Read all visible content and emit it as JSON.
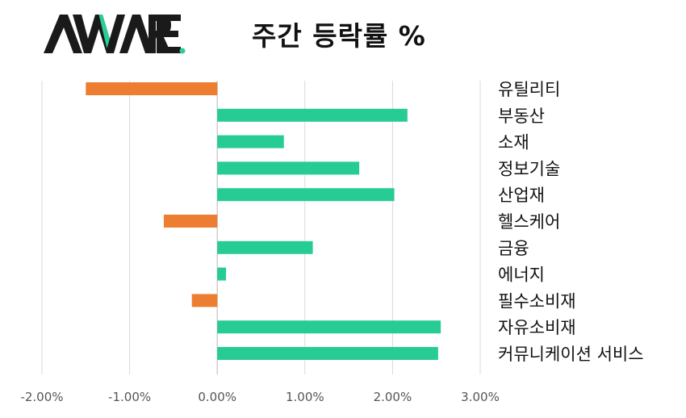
{
  "logo": {
    "text": "AWARE",
    "colors": {
      "dark": "#1a1a1a",
      "accent": "#2bcf96"
    }
  },
  "colors": {
    "positive": "#27cc94",
    "negative": "#ed7d31",
    "gridline": "#d9d9d9"
  },
  "chart_data": {
    "type": "bar",
    "orientation": "horizontal",
    "title": "주간 등락률 %",
    "categories": [
      "유틸리티",
      "부동산",
      "소재",
      "정보기술",
      "산업재",
      "헬스케어",
      "금융",
      "에너지",
      "필수소비재",
      "자유소비재",
      "커뮤니케이션 서비스"
    ],
    "values": [
      -1.5,
      2.17,
      0.76,
      1.62,
      2.02,
      -0.61,
      1.09,
      0.1,
      -0.29,
      2.55,
      2.52
    ],
    "xlim": [
      -2.0,
      3.0
    ],
    "xticks": [
      -2.0,
      -1.0,
      0.0,
      1.0,
      2.0,
      3.0
    ],
    "xtick_labels": [
      "-2.00%",
      "-1.00%",
      "0.00%",
      "1.00%",
      "2.00%",
      "3.00%"
    ],
    "grid": true,
    "legend": "none"
  }
}
